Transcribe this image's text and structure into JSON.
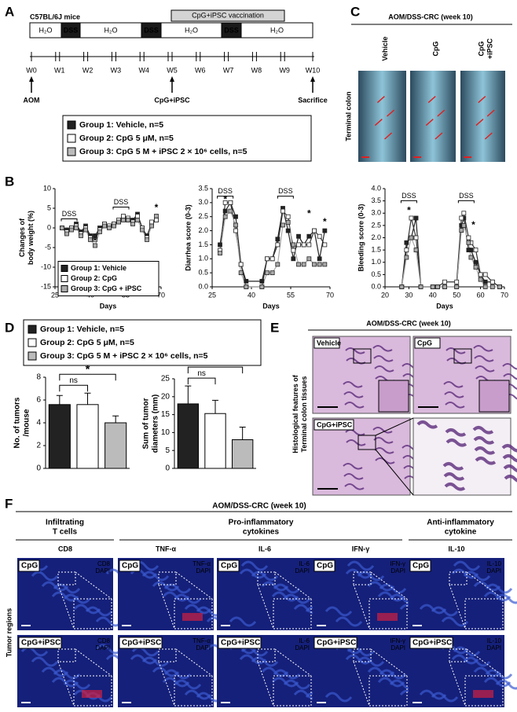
{
  "panel_labels": [
    "A",
    "B",
    "C",
    "D",
    "E",
    "F"
  ],
  "panel_a": {
    "strain": "C57BL/6J mice",
    "vaccination": "CpG+iPSC vaccination",
    "segments": [
      "H₂O",
      "DSS",
      "H₂O",
      "DSS",
      "H₂O",
      "DSS",
      "H₂O"
    ],
    "weeks": [
      "W0",
      "W1",
      "W2",
      "W3",
      "W4",
      "W5",
      "W6",
      "W7",
      "W8",
      "W9",
      "W10"
    ],
    "events": [
      "AOM",
      "CpG+iPSC",
      "Sacrifice"
    ],
    "legend": [
      "Group 1: Vehicle, n=5",
      "Group 2: CpG 5 μM, n=5",
      "Group 3: CpG 5 M + iPSC 2 × 10⁶ cells, n=5"
    ]
  },
  "panel_c": {
    "title": "AOM/DSS-CRC (week 10)",
    "columns": [
      "Vehicle",
      "CpG",
      [
        "CpG",
        "+iPSC"
      ]
    ],
    "row_label": "Terminal colon"
  },
  "panel_d": {
    "legend": [
      "Group 1: Vehicle, n=5",
      "Group 2: CpG 5 μM, n=5",
      "Group 3: CpG 5 M + iPSC 2 × 10⁶ cells, n=5"
    ]
  },
  "panel_e": {
    "title": "AOM/DSS-CRC (week 10)",
    "side_label": [
      "Histological features of",
      "Terminal colon tissues"
    ],
    "images": [
      "Vehicle",
      "CpG",
      "CpG+iPSC"
    ]
  },
  "panel_f": {
    "title": "AOM/DSS-CRC (week 10)",
    "groups": [
      [
        "Infiltrating",
        "T cells"
      ],
      [
        "Pro-inflammatory",
        "cytokines"
      ],
      [
        "Anti-inflammatory",
        "cytokine"
      ]
    ],
    "markers": [
      "CD8",
      "TNF-α",
      "IL-6",
      "IFN-γ",
      "IL-10"
    ],
    "stain": "DAPI",
    "rows": [
      "CpG",
      "CpG+iPSC"
    ],
    "row_label": "Tumor regions"
  },
  "chart_data": [
    {
      "type": "line",
      "ylabel": [
        "Changes of",
        "body weight (%)"
      ],
      "xlabel": "Days",
      "x": [
        28,
        30,
        32,
        34,
        36,
        38,
        40,
        42,
        44,
        46,
        48,
        50,
        52,
        54,
        56,
        58,
        60,
        62,
        64,
        66,
        68
      ],
      "series": [
        {
          "name": "Group 1: Vehicle",
          "color": "#222222",
          "values": [
            0,
            -0.5,
            0,
            1,
            -1,
            0.5,
            -2,
            -2,
            0,
            1,
            0.5,
            1,
            1.5,
            2.5,
            2,
            2,
            3.5,
            0,
            -2,
            1,
            2
          ]
        },
        {
          "name": "Group 2: CpG",
          "color": "#ffffff",
          "values": [
            0,
            -1,
            0,
            0.5,
            -1.5,
            0,
            -2.5,
            -3,
            -0.5,
            1,
            0.5,
            1,
            2,
            3,
            2.5,
            1.5,
            3,
            0,
            -2.5,
            1.5,
            2
          ]
        },
        {
          "name": "Group 3: CpG + iPSC",
          "color": "#aaaaaa",
          "values": [
            0,
            -1.5,
            -0.5,
            0,
            -2,
            -0.5,
            -3,
            -4.5,
            -1,
            0.5,
            0,
            0.5,
            1.5,
            2,
            2,
            1,
            2,
            -0.5,
            -3,
            0.5,
            3
          ]
        }
      ],
      "xlim": [
        25,
        70
      ],
      "xticks": [
        25,
        40,
        55,
        70
      ],
      "ylim": [
        -15,
        10
      ],
      "yticks": [
        -15,
        -10,
        -5,
        0,
        5,
        10
      ],
      "annotations": [
        {
          "text": "DSS",
          "x": 31,
          "y": 3.5
        },
        {
          "text": "DSS",
          "x": 53,
          "y": 6.5
        },
        {
          "text": "*",
          "x": 42,
          "y": -3.5
        },
        {
          "text": "*",
          "x": 68,
          "y": 5
        }
      ],
      "legend": true
    },
    {
      "type": "line",
      "ylabel": "Diarrhea score (0-3)",
      "xlabel": "Days",
      "x": [
        28,
        30,
        32,
        34,
        36,
        38,
        44,
        46,
        48,
        50,
        52,
        54,
        56,
        58,
        60,
        62,
        64,
        66,
        68
      ],
      "series": [
        {
          "color": "#222222",
          "values": [
            1.5,
            2.7,
            3.0,
            2.5,
            0.8,
            0.2,
            0.2,
            1.0,
            1.0,
            1.7,
            2.8,
            2.0,
            1.0,
            1.8,
            1.5,
            1.8,
            2.0,
            1.0,
            2.0
          ]
        },
        {
          "color": "#ffffff",
          "values": [
            1.3,
            3.0,
            3.0,
            2.0,
            0.8,
            0,
            0,
            1.0,
            1.0,
            1.5,
            2.7,
            2.5,
            1.3,
            1.5,
            1.5,
            1.5,
            2.0,
            1.8,
            1.5
          ]
        },
        {
          "color": "#aaaaaa",
          "values": [
            1.2,
            2.5,
            2.7,
            2.2,
            0.5,
            0,
            0,
            0.5,
            0.5,
            0.8,
            2.2,
            2.3,
            1.5,
            0.8,
            0.8,
            1.0,
            0.8,
            0.8,
            0.8
          ]
        }
      ],
      "xlim": [
        25,
        70
      ],
      "xticks": [
        25,
        40,
        55,
        70
      ],
      "ylim": [
        0,
        3.5
      ],
      "yticks": [
        {
          "value": 0,
          "label": "0.0"
        },
        0.5,
        {
          "value": 1,
          "label": "1.0"
        },
        1.5,
        {
          "value": 2,
          "label": "2.0"
        },
        2.5,
        {
          "value": 3,
          "label": "3.0"
        },
        3.5
      ],
      "annotations": [
        {
          "text": "DSS",
          "x": 30,
          "y": 3.4
        },
        {
          "text": "DSS",
          "x": 53,
          "y": 3.4
        },
        {
          "text": "*",
          "x": 30,
          "y": 3.1
        },
        {
          "text": "*",
          "x": 62,
          "y": 2.6
        },
        {
          "text": "*",
          "x": 68,
          "y": 2.3
        }
      ]
    },
    {
      "type": "line",
      "ylabel": "Bleeding score (0-3)",
      "xlabel": "Days",
      "x": [
        27,
        29,
        31,
        33,
        35,
        40,
        42,
        45,
        50,
        52,
        53,
        55,
        56,
        58,
        60,
        62,
        65,
        68
      ],
      "series": [
        {
          "color": "#222222",
          "values": [
            0,
            1.8,
            2.0,
            2.8,
            0,
            0,
            0,
            0,
            0,
            2.5,
            2.8,
            1.5,
            1.5,
            1.0,
            0.5,
            0.2,
            0.2,
            0
          ]
        },
        {
          "color": "#ffffff",
          "values": [
            0,
            1.5,
            2.8,
            2.0,
            0,
            0,
            0,
            0.2,
            0.2,
            2.8,
            3.0,
            2.0,
            1.8,
            1.5,
            0.5,
            0.5,
            0.2,
            0
          ]
        },
        {
          "color": "#aaaaaa",
          "values": [
            0,
            1.2,
            2.0,
            1.5,
            0,
            0,
            0,
            0,
            0,
            2.3,
            2.5,
            1.8,
            1.2,
            0.8,
            0.3,
            0,
            0,
            0
          ]
        }
      ],
      "xlim": [
        20,
        70
      ],
      "xticks": [
        20,
        30,
        40,
        50,
        60,
        70
      ],
      "ylim": [
        0,
        4
      ],
      "yticks": [
        {
          "value": 0,
          "label": "0.0"
        },
        0.5,
        {
          "value": 1,
          "label": "1.0"
        },
        1.5,
        {
          "value": 2,
          "label": "2.0"
        },
        2.5,
        {
          "value": 3,
          "label": "3.0"
        },
        3.5,
        {
          "value": 4,
          "label": "4.0"
        }
      ],
      "annotations": [
        {
          "text": "DSS",
          "x": 30,
          "y": 3.7
        },
        {
          "text": "DSS",
          "x": 54,
          "y": 3.7
        },
        {
          "text": "*",
          "x": 30,
          "y": 3.1
        },
        {
          "text": "*",
          "x": 57,
          "y": 2.5
        }
      ]
    },
    {
      "type": "bar",
      "ylabel": [
        "No. of tumors",
        "/mouse"
      ],
      "categories": [
        null,
        null,
        null
      ],
      "values": [
        5.6,
        5.6,
        4.0
      ],
      "errors": [
        0.8,
        1.0,
        0.6
      ],
      "colors": [
        "#222222",
        "#ffffff",
        "#bbbbbb"
      ],
      "ylim": [
        0,
        8
      ],
      "yticks": [
        0,
        2,
        4,
        6,
        8
      ],
      "annotations": [
        {
          "text": "ns"
        },
        {
          "text": "*"
        }
      ]
    },
    {
      "type": "bar",
      "ylabel": [
        "Sum of tumor",
        "diameters (mm)"
      ],
      "categories": [
        null,
        null,
        null
      ],
      "values": [
        18,
        15.3,
        8
      ],
      "errors": [
        5,
        3.7,
        3.5
      ],
      "colors": [
        "#222222",
        "#ffffff",
        "#bbbbbb"
      ],
      "ylim": [
        0,
        25
      ],
      "yticks": [
        0,
        5,
        10,
        15,
        20,
        25
      ],
      "annotations": [
        {
          "text": "ns"
        },
        {
          "text": "**"
        }
      ]
    }
  ]
}
